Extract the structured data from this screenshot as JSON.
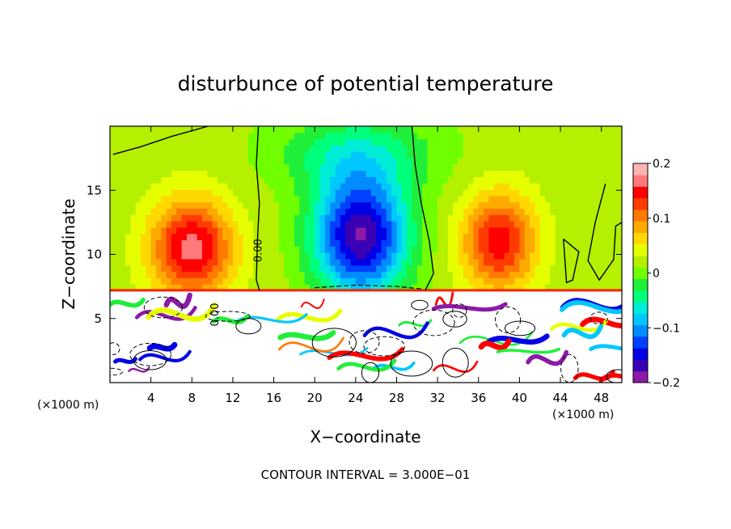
{
  "chart_data": {
    "type": "heatmap",
    "title": "disturbunce of potential temperature",
    "xlabel": "X−coordinate",
    "ylabel": "Z−coordinate",
    "x_unit_left": "(×1000 m)",
    "x_unit_right": "(×1000 m)",
    "footer": "CONTOUR INTERVAL = 3.000E−01",
    "xlim": [
      0,
      50
    ],
    "ylim": [
      0,
      20
    ],
    "x_ticks": [
      4,
      8,
      12,
      16,
      20,
      24,
      28,
      32,
      36,
      40,
      44,
      48
    ],
    "y_ticks": [
      5,
      10,
      15
    ],
    "contour_labels": [
      {
        "text": "0.00",
        "x": 14.8,
        "z": 10.3
      },
      {
        "text": "0.00",
        "x": 10.6,
        "z": 5.3
      }
    ],
    "colorbar": {
      "range": [
        -0.2,
        0.2
      ],
      "tick_labels": [
        "0.2",
        "0.1",
        "0",
        "−0.1",
        "−0.2"
      ],
      "tick_values": [
        0.2,
        0.1,
        0,
        -0.1,
        -0.2
      ],
      "colors": [
        "#8c1aa8",
        "#3a00b4",
        "#0000e6",
        "#0040ff",
        "#008cff",
        "#00c8ff",
        "#00ecd8",
        "#00ff7a",
        "#20ef3a",
        "#70ff00",
        "#b4f000",
        "#e6ff00",
        "#ffd800",
        "#ffaa00",
        "#ff7800",
        "#ff3c00",
        "#ff0000",
        "#ff7a7a",
        "#ffb4b4"
      ]
    },
    "series": [
      {
        "value": 0.15,
        "center_x": 8.0,
        "center_z": 10.5,
        "spread_x": 4.0,
        "spread_z": 3.8
      },
      {
        "value": 0.13,
        "center_x": 38.0,
        "center_z": 11.0,
        "spread_x": 3.6,
        "spread_z": 3.8
      },
      {
        "value": -0.2,
        "center_x": 24.5,
        "center_z": 11.5,
        "spread_x": 4.6,
        "spread_z": 4.8
      },
      {
        "value": -0.06,
        "center_x": 24.0,
        "center_z": 18.0,
        "spread_x": 8.0,
        "spread_z": 3.0
      }
    ]
  }
}
